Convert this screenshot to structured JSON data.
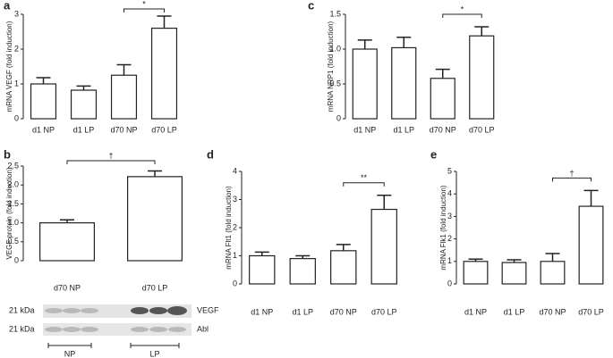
{
  "chart_data": [
    {
      "type": "bar",
      "panel": "a",
      "y_label": "mRNA VEGF (fold induction)",
      "categories": [
        "d1 NP",
        "d1 LP",
        "d70 NP",
        "d70 LP"
      ],
      "values": [
        1.0,
        0.82,
        1.25,
        2.6
      ],
      "errors": [
        0.18,
        0.12,
        0.3,
        0.35
      ],
      "ylim": [
        0,
        3
      ],
      "yticks": [
        0,
        1,
        2,
        3
      ],
      "color": "#ffffff",
      "significance": {
        "text": "*",
        "from": 2,
        "to": 3
      }
    },
    {
      "type": "bar",
      "panel": "b",
      "y_label": "VEGF protein (fold induction)",
      "categories": [
        "d70 NP",
        "d70 LP"
      ],
      "values": [
        1.0,
        2.22
      ],
      "errors": [
        0.08,
        0.15
      ],
      "ylim": [
        0,
        2.5
      ],
      "yticks": [
        0,
        0.5,
        {
          "value": 1,
          "label": "1.0"
        },
        1.5,
        {
          "value": 2,
          "label": "2.0"
        },
        2.5
      ],
      "color": "#ffffff",
      "significance": {
        "text": "†",
        "from": 0,
        "to": 1
      }
    },
    {
      "type": "bar",
      "panel": "c",
      "y_label": "mRNA NRP1 (fold induction)",
      "categories": [
        "d1 NP",
        "d1 LP",
        "d70 NP",
        "d70 LP"
      ],
      "values": [
        1.0,
        1.02,
        0.58,
        1.19
      ],
      "errors": [
        0.13,
        0.15,
        0.13,
        0.13
      ],
      "ylim": [
        0,
        1.5
      ],
      "yticks": [
        0,
        0.5,
        {
          "value": 1,
          "label": "1.0"
        },
        1.5
      ],
      "color": "#ffffff",
      "significance": {
        "text": "*",
        "from": 2,
        "to": 3
      }
    },
    {
      "type": "bar",
      "panel": "d",
      "y_label": "mRNA Flt1 (fold induction)",
      "categories": [
        "d1 NP",
        "d1 LP",
        "d70 NP",
        "d70 LP"
      ],
      "values": [
        1.0,
        0.9,
        1.18,
        2.65
      ],
      "errors": [
        0.13,
        0.1,
        0.22,
        0.5
      ],
      "ylim": [
        0,
        4
      ],
      "yticks": [
        0,
        1,
        2,
        3,
        4
      ],
      "color": "#ffffff",
      "significance": {
        "text": "**",
        "from": 2,
        "to": 3
      }
    },
    {
      "type": "bar",
      "panel": "e",
      "y_label": "mRNA Flk1 (fold induction)",
      "categories": [
        "d1 NP",
        "d1 LP",
        "d70 NP",
        "d70 LP"
      ],
      "values": [
        1.0,
        0.95,
        1.0,
        3.45
      ],
      "errors": [
        0.1,
        0.12,
        0.35,
        0.7
      ],
      "ylim": [
        0,
        5
      ],
      "yticks": [
        0,
        1,
        2,
        3,
        4,
        5
      ],
      "color": "#ffffff",
      "significance": {
        "text": "†",
        "from": 2,
        "to": 3
      }
    }
  ],
  "blot": {
    "size_labels": [
      "21 kDa",
      "21 kDa"
    ],
    "bands": [
      "VEGF",
      "Abl"
    ],
    "groups": [
      "NP",
      "LP"
    ]
  }
}
